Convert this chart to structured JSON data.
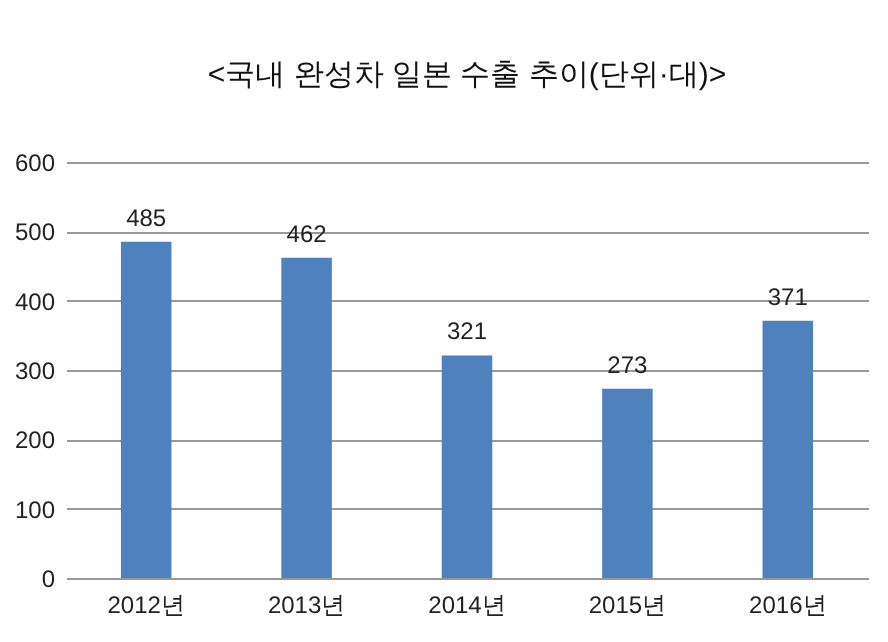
{
  "chart_data": {
    "type": "bar",
    "title": "<국내 완성차 일본 수출 추이(단위·대)>",
    "categories": [
      "2012년",
      "2013년",
      "2014년",
      "2015년",
      "2016년"
    ],
    "values": [
      485,
      462,
      321,
      273,
      371
    ],
    "color": "#4f81bd",
    "ylim": [
      0,
      600
    ],
    "yticks": [
      0,
      100,
      200,
      300,
      400,
      500,
      600
    ],
    "grid": "y",
    "data_labels": true
  }
}
